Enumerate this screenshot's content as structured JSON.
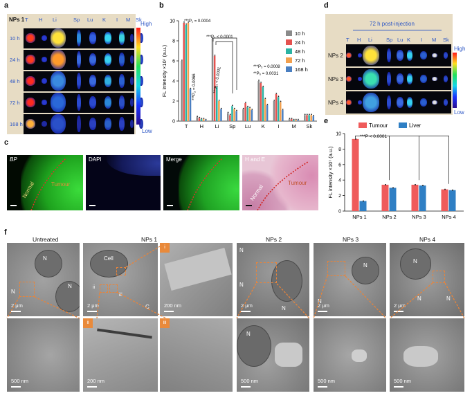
{
  "panel_letters": {
    "a": "a",
    "b": "b",
    "c": "c",
    "d": "d",
    "e": "e",
    "f": "f"
  },
  "panel_a": {
    "header": "NPs 1",
    "organs": [
      "T",
      "H",
      "Li",
      "Sp",
      "Lu",
      "K",
      "I",
      "M",
      "Sk"
    ],
    "rows": [
      "10 h",
      "24 h",
      "48 h",
      "72 h",
      "168 h"
    ],
    "scale_high": "High",
    "scale_low": "Low"
  },
  "panel_b": {
    "ylabel": "FL intensity ×10⁷ (a.u.)",
    "legend": [
      "10 h",
      "24 h",
      "48 h",
      "72 h",
      "168 h"
    ],
    "colors": [
      "#8a8a8a",
      "#e4524f",
      "#2ab3a3",
      "#f2a04e",
      "#4a7fc1"
    ],
    "annotations": [
      "***P₁ = 0.0004",
      "***P₂ = 0.0066",
      "***P₃ < 0.0001",
      "***P₄ < 0.0001",
      "***P₅ = 0.0008",
      "**P₆ = 0.0031"
    ]
  },
  "panel_c": {
    "titles": [
      "BP",
      "DAPI",
      "Merge",
      "H and E"
    ],
    "normal": "Normal",
    "tumour": "Tumour"
  },
  "panel_d": {
    "header": "72 h post-injection",
    "organs": [
      "T",
      "H",
      "Li",
      "Sp",
      "Lu",
      "K",
      "I",
      "M",
      "Sk"
    ],
    "rows": [
      "NPs 2",
      "NPs 3",
      "NPs 4"
    ],
    "scale_high": "High",
    "scale_low": "Low"
  },
  "panel_e": {
    "ylabel": "FL intensity ×10⁷ (a.u.)",
    "legend": [
      "Tumour",
      "Liver"
    ],
    "colors": [
      "#ef5b5b",
      "#2f7fc4"
    ],
    "annotation": "***P < 0.0001"
  },
  "panel_f": {
    "columns": [
      "Untreated",
      "NPs 1",
      "NPs 2",
      "NPs 3",
      "NPs 4"
    ],
    "cell_label": "Cell",
    "nucleus": "N",
    "c_label": "C",
    "roman": [
      "i",
      "ii",
      "iii"
    ],
    "scale_2um": "2 μm",
    "scale_200nm": "200 nm",
    "scale_500nm": "500 nm"
  },
  "chart_data": [
    {
      "type": "bar",
      "title": "",
      "categories": [
        "T",
        "H",
        "Li",
        "Sp",
        "Lu",
        "K",
        "I",
        "M",
        "Sk"
      ],
      "xlabel": "",
      "ylabel": "FL intensity ×10⁷ (a.u.)",
      "ylim": [
        0,
        10
      ],
      "series": [
        {
          "name": "10 h",
          "values": [
            6.0,
            0.4,
            8.2,
            0.8,
            1.2,
            4.0,
            2.0,
            0.2,
            0.6
          ]
        },
        {
          "name": "24 h",
          "values": [
            9.8,
            0.3,
            6.5,
            0.6,
            1.8,
            3.8,
            2.7,
            0.2,
            0.6
          ]
        },
        {
          "name": "48 h",
          "values": [
            9.6,
            0.2,
            3.4,
            1.5,
            1.4,
            3.4,
            2.4,
            0.1,
            0.6
          ]
        },
        {
          "name": "72 h",
          "values": [
            9.8,
            0.2,
            2.0,
            1.2,
            1.3,
            2.2,
            1.9,
            0.1,
            0.6
          ]
        },
        {
          "name": "168 h",
          "values": [
            3.2,
            0.1,
            1.2,
            1.0,
            1.1,
            1.6,
            1.1,
            0.1,
            0.5
          ]
        }
      ]
    },
    {
      "type": "bar",
      "title": "",
      "categories": [
        "NPs 1",
        "NPs 2",
        "NPs 3",
        "NPs 4"
      ],
      "xlabel": "",
      "ylabel": "FL intensity ×10⁷ (a.u.)",
      "ylim": [
        0,
        10
      ],
      "series": [
        {
          "name": "Tumour",
          "values": [
            9.3,
            3.4,
            3.4,
            2.8
          ]
        },
        {
          "name": "Liver",
          "values": [
            1.3,
            3.0,
            3.3,
            2.7
          ]
        }
      ]
    }
  ]
}
